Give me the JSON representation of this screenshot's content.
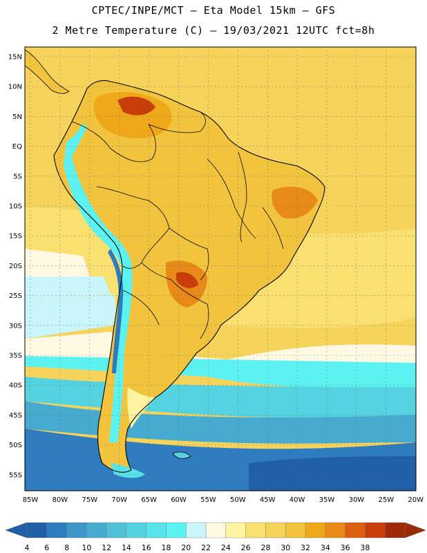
{
  "header": {
    "line1": "CPTEC/INPE/MCT —  Eta Model 15km — GFS",
    "line2": "2 Metre Temperature (C) — 19/03/2021 12UTC fct=8h"
  },
  "map": {
    "lat_labels": [
      "15N",
      "10N",
      "5N",
      "EQ",
      "5S",
      "10S",
      "15S",
      "20S",
      "25S",
      "30S",
      "35S",
      "40S",
      "45S",
      "50S",
      "55S"
    ],
    "lon_labels": [
      "85W",
      "80W",
      "75W",
      "70W",
      "65W",
      "60W",
      "55W",
      "50W",
      "45W",
      "40W",
      "35W",
      "30W",
      "25W",
      "20W"
    ]
  },
  "colorbar": {
    "labels": [
      "4",
      "6",
      "8",
      "10",
      "12",
      "14",
      "16",
      "18",
      "20",
      "22",
      "24",
      "26",
      "28",
      "30",
      "32",
      "34",
      "36",
      "38"
    ],
    "colors": [
      "#1f5fa8",
      "#2e7bbd",
      "#3d95c8",
      "#47abd0",
      "#4fc0d8",
      "#55d2e0",
      "#58e2ea",
      "#5df2f2",
      "#c8f6fb",
      "#fff8e2",
      "#fdf3a0",
      "#f9e070",
      "#f6d35a",
      "#f2c43e",
      "#eea81a",
      "#e88a18",
      "#dc6010",
      "#c83e0a",
      "#9c2a06"
    ],
    "left_arrow_color": "#1f5fa8",
    "right_arrow_color": "#9c2a06"
  }
}
